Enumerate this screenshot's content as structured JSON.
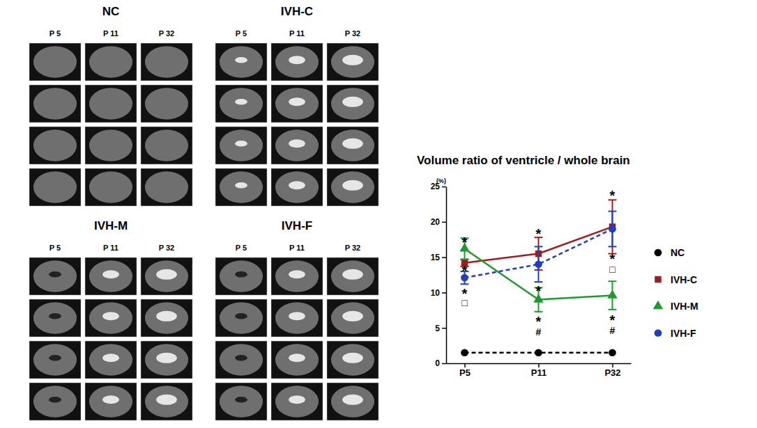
{
  "image_panels": [
    {
      "title": "NC",
      "columns": [
        "P 5",
        "P 11",
        "P 32"
      ]
    },
    {
      "title": "IVH-C",
      "columns": [
        "P 5",
        "P 11",
        "P 32"
      ]
    },
    {
      "title": "IVH-M",
      "columns": [
        "P 5",
        "P 11",
        "P 32"
      ]
    },
    {
      "title": "IVH-F",
      "columns": [
        "P 5",
        "P 11",
        "P 32"
      ]
    }
  ],
  "chart_data": {
    "type": "line",
    "title": "Volume ratio of ventricle / whole brain",
    "y_unit": "(%)",
    "categories": [
      "P5",
      "P11",
      "P32"
    ],
    "ylim": [
      0,
      25
    ],
    "yticks": [
      0,
      5,
      10,
      15,
      20,
      25
    ],
    "legend": "right",
    "series": [
      {
        "name": "NC",
        "color": "#000000",
        "marker": "circle",
        "line_style": "dashed",
        "values": [
          1.5,
          1.5,
          1.5
        ],
        "errors": [
          0,
          0,
          0
        ]
      },
      {
        "name": "IVH-C",
        "color": "#a01c1c",
        "marker": "square",
        "line_style": "solid",
        "values": [
          14.2,
          15.5,
          19.3
        ],
        "errors": [
          0.5,
          2.3,
          3.8
        ]
      },
      {
        "name": "IVH-M",
        "color": "#1e9a2c",
        "marker": "triangle",
        "line_style": "solid",
        "values": [
          16.2,
          9.0,
          9.6
        ],
        "errors": [
          1.5,
          1.7,
          2.0
        ]
      },
      {
        "name": "IVH-F",
        "color": "#1f3fbf",
        "marker": "circle",
        "line_style": "dashed",
        "values": [
          12.1,
          14.0,
          19.0
        ],
        "errors": [
          0.9,
          2.5,
          2.5
        ]
      }
    ],
    "annotations": [
      {
        "text": "*",
        "category": "P5",
        "y": 13.6
      },
      {
        "text": "*",
        "category": "P5",
        "y": 17.6
      },
      {
        "text": "*",
        "category": "P5",
        "y": 10.3
      },
      {
        "text": "□",
        "category": "P5",
        "y": 8.6
      },
      {
        "text": "*",
        "category": "P11",
        "y": 18.8
      },
      {
        "text": "*",
        "category": "P11",
        "y": 10.7
      },
      {
        "text": "*",
        "category": "P11",
        "y": 6.4
      },
      {
        "text": "#",
        "category": "P11",
        "y": 4.4
      },
      {
        "text": "*",
        "category": "P32",
        "y": 24.2
      },
      {
        "text": "*",
        "category": "P32",
        "y": 15.3
      },
      {
        "text": "□",
        "category": "P32",
        "y": 13.3
      },
      {
        "text": "*",
        "category": "P32",
        "y": 6.6
      },
      {
        "text": "#",
        "category": "P32",
        "y": 4.6
      }
    ]
  }
}
